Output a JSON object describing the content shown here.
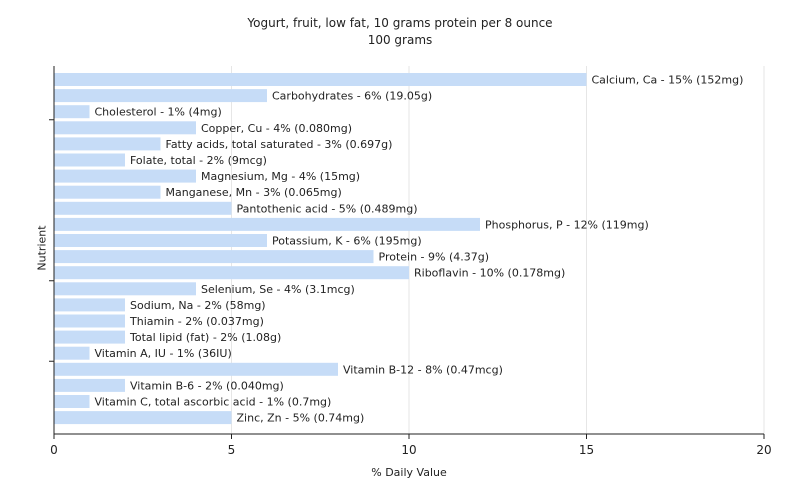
{
  "chart_data": {
    "type": "bar",
    "orientation": "horizontal",
    "title": "Yogurt, fruit, low fat, 10 grams protein per 8 ounce",
    "subtitle": "100 grams",
    "xlabel": "% Daily Value",
    "ylabel": "Nutrient",
    "xlim": [
      0,
      20
    ],
    "xticks": [
      0,
      5,
      10,
      15,
      20
    ],
    "grid": true,
    "bar_color": "#c6dcf7",
    "categories": [
      "Calcium, Ca",
      "Carbohydrates",
      "Cholesterol",
      "Copper, Cu",
      "Fatty acids, total saturated",
      "Folate, total",
      "Magnesium, Mg",
      "Manganese, Mn",
      "Pantothenic acid",
      "Phosphorus, P",
      "Potassium, K",
      "Protein",
      "Riboflavin",
      "Selenium, Se",
      "Sodium, Na",
      "Thiamin",
      "Total lipid (fat)",
      "Vitamin A, IU",
      "Vitamin B-12",
      "Vitamin B-6",
      "Vitamin C, total ascorbic acid",
      "Zinc, Zn"
    ],
    "values": [
      15,
      6,
      1,
      4,
      3,
      2,
      4,
      3,
      5,
      12,
      6,
      9,
      10,
      4,
      2,
      2,
      2,
      1,
      8,
      2,
      1,
      5
    ],
    "data_labels": [
      "Calcium, Ca - 15% (152mg)",
      "Carbohydrates - 6% (19.05g)",
      "Cholesterol - 1% (4mg)",
      "Copper, Cu - 4% (0.080mg)",
      "Fatty acids, total saturated - 3% (0.697g)",
      "Folate, total - 2% (9mcg)",
      "Magnesium, Mg - 4% (15mg)",
      "Manganese, Mn - 3% (0.065mg)",
      "Pantothenic acid - 5% (0.489mg)",
      "Phosphorus, P - 12% (119mg)",
      "Potassium, K - 6% (195mg)",
      "Protein - 9% (4.37g)",
      "Riboflavin - 10% (0.178mg)",
      "Selenium, Se - 4% (3.1mcg)",
      "Sodium, Na - 2% (58mg)",
      "Thiamin - 2% (0.037mg)",
      "Total lipid (fat) - 2% (1.08g)",
      "Vitamin A, IU - 1% (36IU)",
      "Vitamin B-12 - 8% (0.47mcg)",
      "Vitamin B-6 - 2% (0.040mg)",
      "Vitamin C, total ascorbic acid - 1% (0.7mg)",
      "Zinc, Zn - 5% (0.74mg)"
    ]
  }
}
